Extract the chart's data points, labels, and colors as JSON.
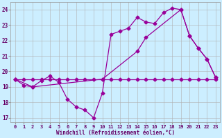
{
  "bg_color": "#cceeff",
  "line_color": "#990099",
  "grid_color": "#b0b0b0",
  "xlabel": "Windchill (Refroidissement éolien,°C)",
  "xlabel_color": "#660066",
  "tick_color": "#660066",
  "xlim": [
    -0.5,
    23.5
  ],
  "ylim": [
    16.7,
    24.5
  ],
  "yticks": [
    17,
    18,
    19,
    20,
    21,
    22,
    23,
    24
  ],
  "xticks": [
    0,
    1,
    2,
    3,
    4,
    5,
    6,
    7,
    8,
    9,
    10,
    11,
    12,
    13,
    14,
    15,
    16,
    17,
    18,
    19,
    20,
    21,
    22,
    23
  ],
  "line1_x": [
    0,
    1,
    2,
    3,
    4,
    5,
    6,
    7,
    8,
    9,
    10,
    11,
    12,
    13,
    14,
    15,
    16,
    17,
    18,
    19,
    20,
    21,
    22,
    23
  ],
  "line1_y": [
    19.5,
    19.5,
    19.5,
    19.5,
    19.5,
    19.5,
    19.5,
    19.5,
    19.5,
    19.5,
    19.5,
    19.5,
    19.5,
    19.5,
    19.5,
    19.5,
    19.5,
    19.5,
    19.5,
    19.5,
    19.5,
    19.5,
    19.5,
    19.5
  ],
  "line2_x": [
    0,
    1,
    2,
    3,
    4,
    5,
    6,
    7,
    8,
    9,
    10,
    11,
    12,
    13,
    14,
    15,
    16,
    17,
    18,
    19,
    20,
    21,
    22,
    23
  ],
  "line2_y": [
    19.5,
    19.1,
    19.0,
    19.4,
    19.7,
    19.3,
    18.2,
    17.7,
    17.5,
    17.0,
    18.6,
    22.4,
    22.6,
    22.8,
    23.5,
    23.2,
    23.1,
    23.8,
    24.1,
    24.0,
    22.3,
    21.5,
    20.8,
    19.6
  ],
  "line3_x": [
    0,
    2,
    10,
    14,
    15,
    19,
    20,
    21,
    22,
    23
  ],
  "line3_y": [
    19.5,
    19.0,
    19.5,
    21.3,
    22.2,
    24.0,
    22.3,
    21.5,
    20.8,
    19.6
  ]
}
